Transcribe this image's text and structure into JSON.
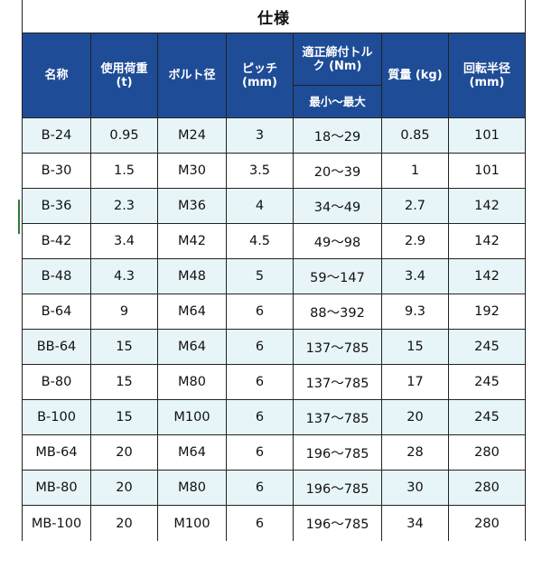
{
  "title": "仕様",
  "headers": {
    "name": "名称",
    "load": "使用荷重\n(t)",
    "bolt": "ボルト径",
    "pitch": "ピッチ\n(mm)",
    "torque": "適正締付トル\nク (Nm)",
    "torque_range": "最小～最大",
    "mass": "質量 (kg)",
    "radius": "回転半径\n(mm)"
  },
  "rows": [
    [
      "B-24",
      "0.95",
      "M24",
      "3",
      "18～29",
      "0.85",
      "101"
    ],
    [
      "B-30",
      "1.5",
      "M30",
      "3.5",
      "20～39",
      "1",
      "101"
    ],
    [
      "B-36",
      "2.3",
      "M36",
      "4",
      "34～49",
      "2.7",
      "142"
    ],
    [
      "B-42",
      "3.4",
      "M42",
      "4.5",
      "49～98",
      "2.9",
      "142"
    ],
    [
      "B-48",
      "4.3",
      "M48",
      "5",
      "59～147",
      "3.4",
      "142"
    ],
    [
      "B-64",
      "9",
      "M64",
      "6",
      "88～392",
      "9.3",
      "192"
    ],
    [
      "BB-64",
      "15",
      "M64",
      "6",
      "137～785",
      "15",
      "245"
    ],
    [
      "B-80",
      "15",
      "M80",
      "6",
      "137～785",
      "17",
      "245"
    ],
    [
      "B-100",
      "15",
      "M100",
      "6",
      "137～785",
      "20",
      "245"
    ],
    [
      "MB-64",
      "20",
      "M64",
      "6",
      "196～785",
      "28",
      "280"
    ],
    [
      "MB-80",
      "20",
      "M80",
      "6",
      "196～785",
      "30",
      "280"
    ],
    [
      "MB-100",
      "20",
      "M100",
      "6",
      "196～785",
      "34",
      "280"
    ]
  ],
  "colors": {
    "header_bg": "#1f4c96",
    "header_text": "#ffffff",
    "alt_row_bg": "#e8f5f8",
    "row_bg": "#ffffff"
  }
}
